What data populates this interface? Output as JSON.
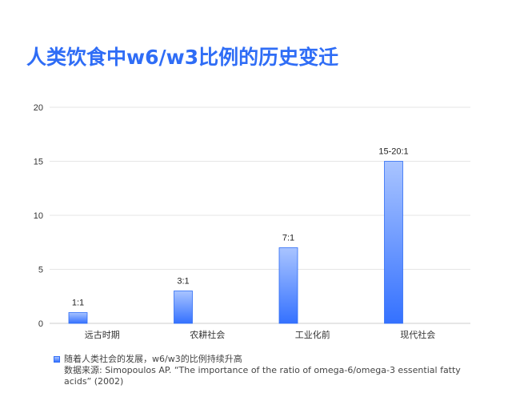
{
  "title": "人类饮食中w6/w3比例的历史变迁",
  "colors": {
    "accent": "#2f6df6",
    "bar_top": "#a9c4ff",
    "bar_bottom": "#3471ff",
    "grid": "#e6e6e6"
  },
  "chart_data": {
    "type": "bar",
    "categories": [
      "远古时期",
      "农耕社会",
      "工业化前",
      "现代社会"
    ],
    "series": [
      {
        "name": "随着人类社会的发展，w6/w3的比例持续升高",
        "values": [
          1,
          3,
          7,
          15
        ]
      }
    ],
    "data_labels": [
      "1:1",
      "3:1",
      "7:1",
      "15-20:1"
    ],
    "y_ticks": [
      0,
      5,
      10,
      15,
      20
    ],
    "ylim": [
      0,
      20
    ],
    "grid": true,
    "legend_position": "bottom-left",
    "source": "数据来源: Simopoulos AP. “The importance of the ratio of omega-6/omega-3 essential fatty acids” (2002)"
  }
}
